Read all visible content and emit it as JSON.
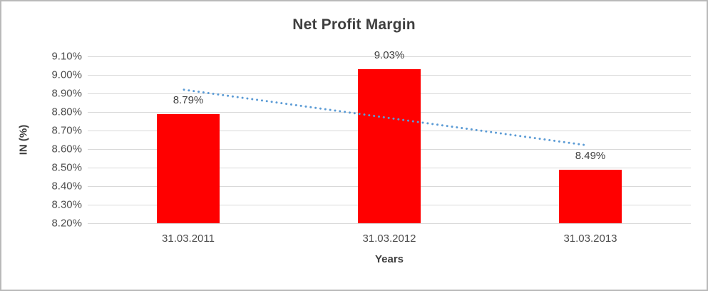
{
  "chart_data": {
    "type": "bar",
    "title": "Net Profit Margin",
    "xlabel": "Years",
    "ylabel": "IN (%)",
    "categories": [
      "31.03.2011",
      "31.03.2012",
      "31.03.2013"
    ],
    "values": [
      8.79,
      9.03,
      8.49
    ],
    "value_labels": [
      "8.79%",
      "9.03%",
      "8.49%"
    ],
    "ylim": [
      8.2,
      9.1
    ],
    "yticks": [
      {
        "value": 8.2,
        "label": "8.20%"
      },
      {
        "value": 8.3,
        "label": "8.30%"
      },
      {
        "value": 8.4,
        "label": "8.40%"
      },
      {
        "value": 8.5,
        "label": "8.50%"
      },
      {
        "value": 8.6,
        "label": "8.60%"
      },
      {
        "value": 8.7,
        "label": "8.70%"
      },
      {
        "value": 8.8,
        "label": "8.80%"
      },
      {
        "value": 8.9,
        "label": "8.90%"
      },
      {
        "value": 9.0,
        "label": "9.00%"
      },
      {
        "value": 9.1,
        "label": "9.10%"
      }
    ],
    "grid": true,
    "legend": "none",
    "bar_color": "#ff0000",
    "trendline": {
      "type": "linear",
      "style": "dotted",
      "color": "#5b9bd5",
      "start_value": 8.92,
      "end_value": 8.62
    }
  },
  "colors": {
    "title_text": "#3f3f3f",
    "axis_text": "#4d4d4d",
    "gridline": "#d9d9d9",
    "background": "#ffffff",
    "border": "#b9b9b9"
  }
}
